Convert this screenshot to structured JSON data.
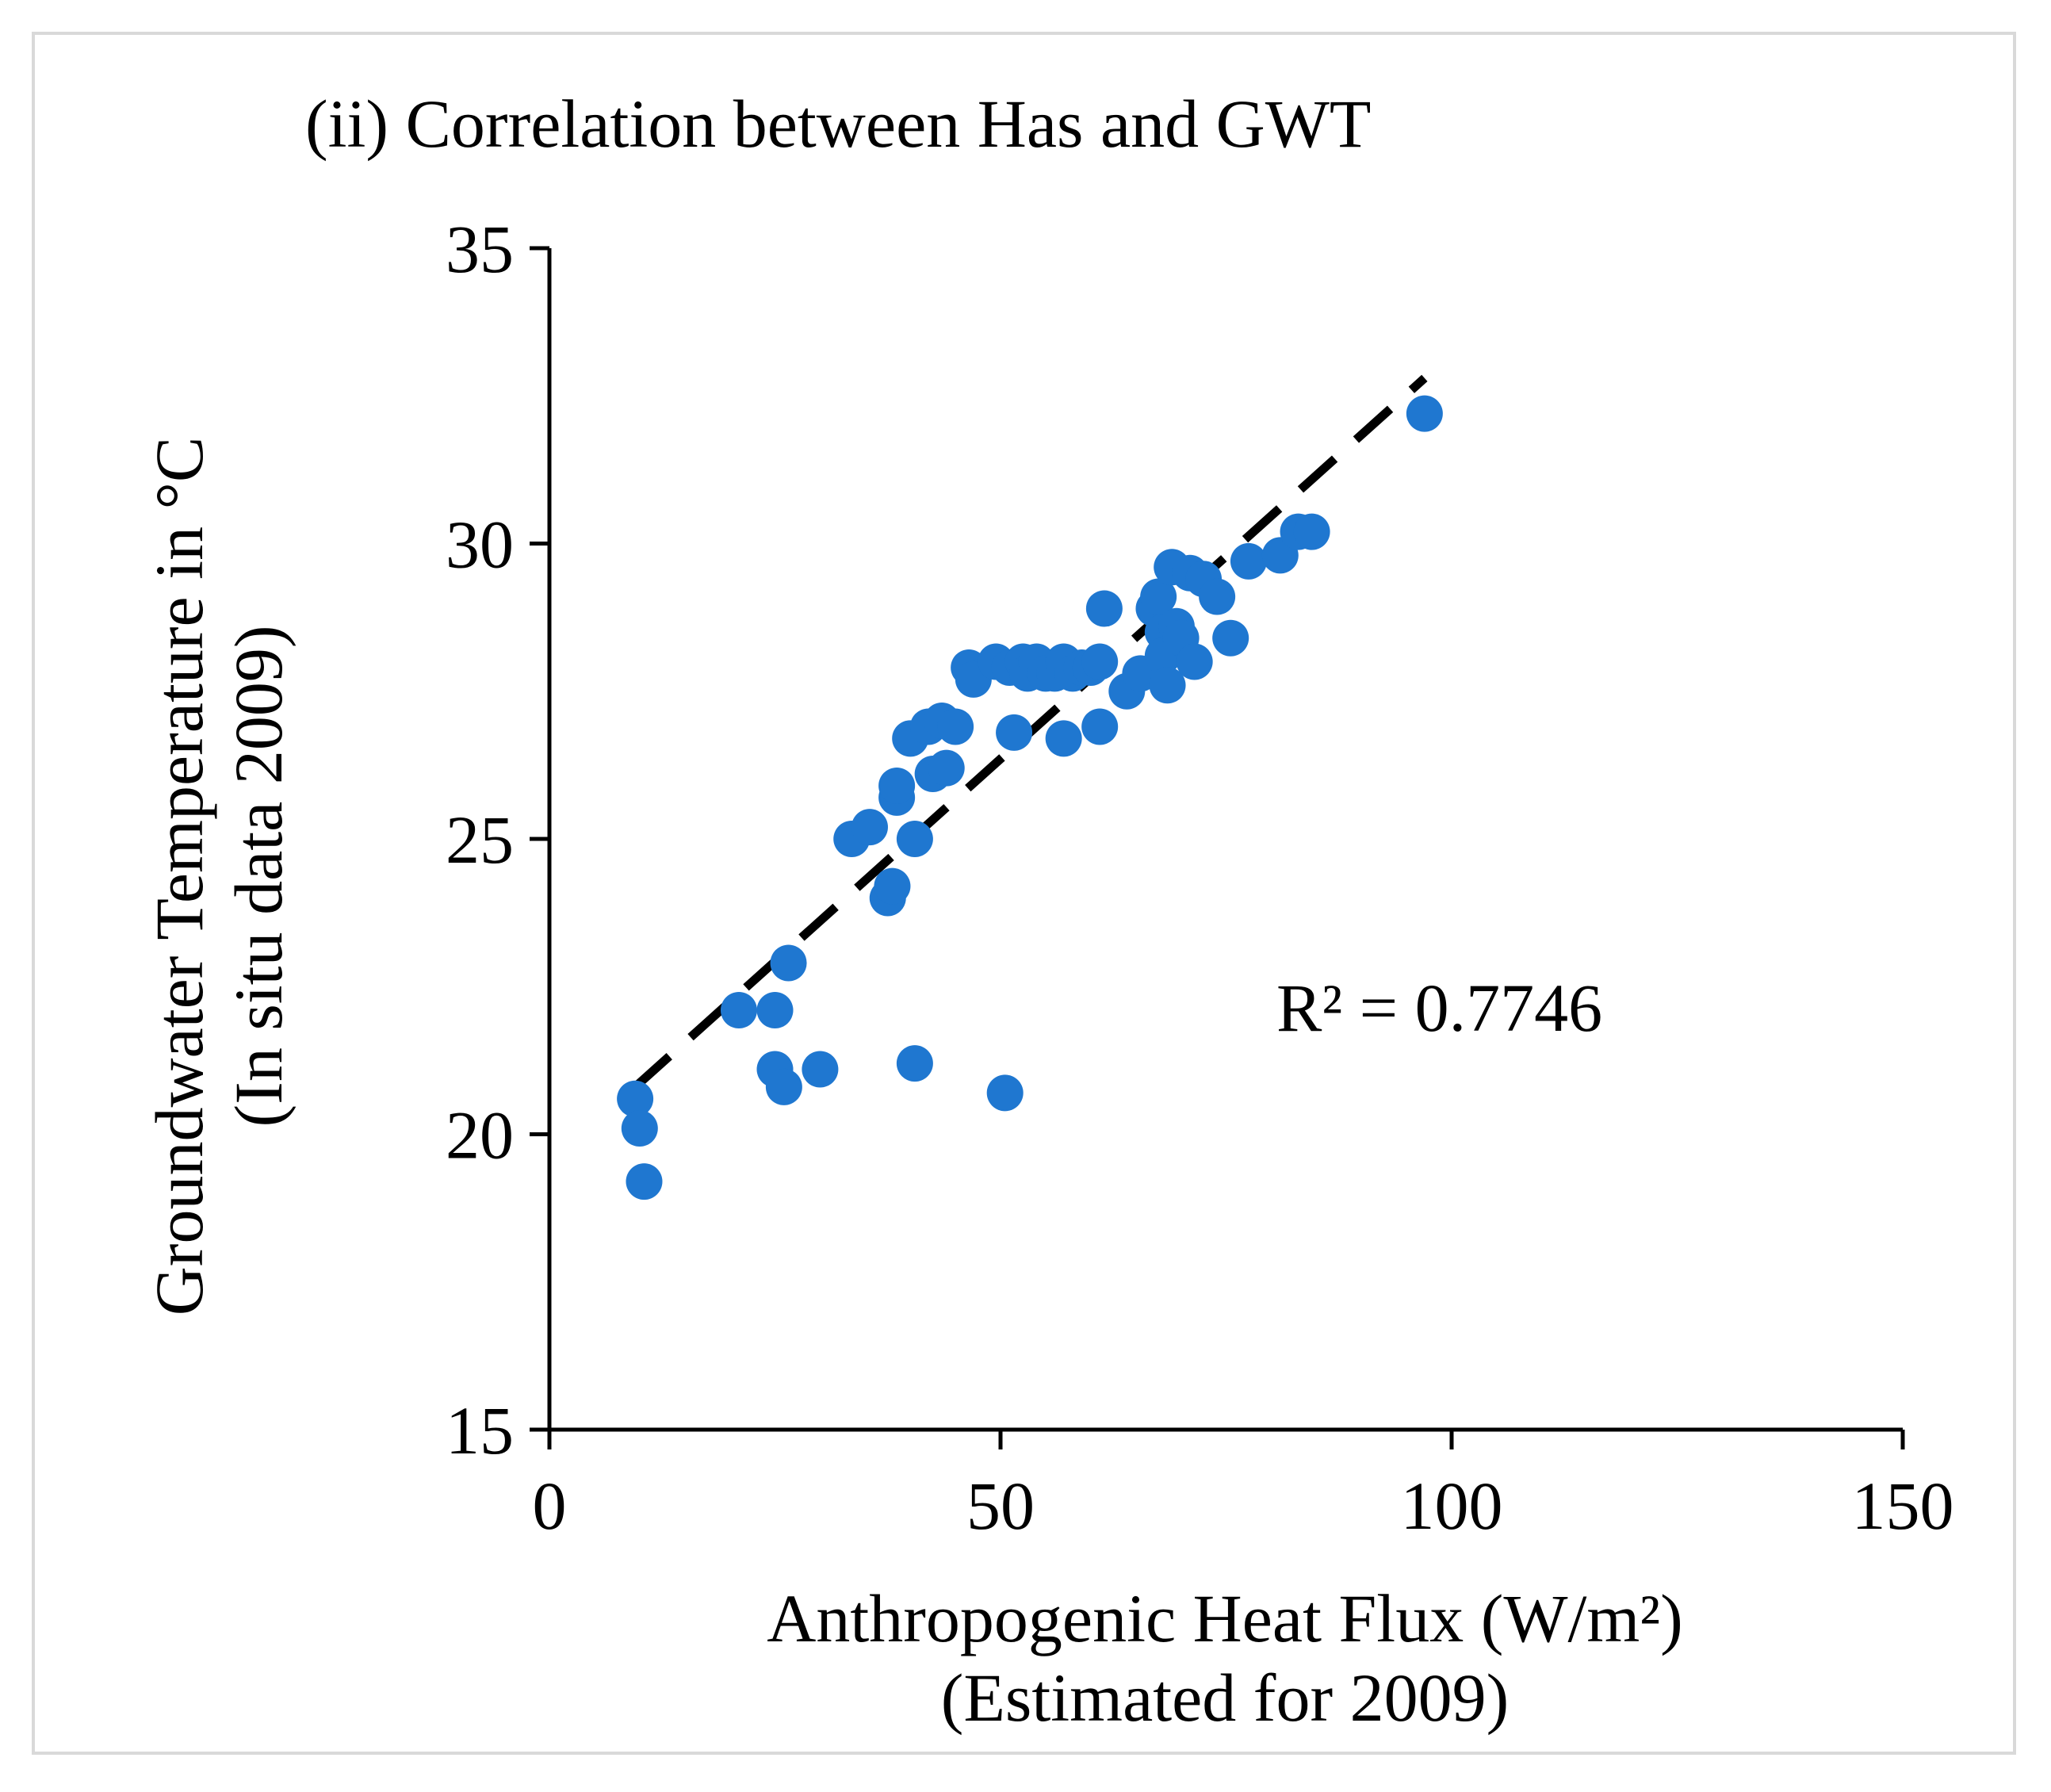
{
  "chart_data": {
    "type": "scatter",
    "title": "(ii) Correlation between Has and GWT",
    "xlabel": [
      "Anthropogenic Heat Flux (W/m²)",
      "(Estimated for 2009)"
    ],
    "ylabel": [
      "Groundwater Temperature in °C",
      "(In situ data 2009)"
    ],
    "xlim": [
      0,
      150
    ],
    "ylim": [
      15,
      35
    ],
    "xticks": [
      0,
      50,
      100,
      150
    ],
    "yticks": [
      15,
      20,
      25,
      30,
      35
    ],
    "x_tick_labels": [
      "0",
      "50",
      "100",
      "150"
    ],
    "y_tick_labels": [
      "15",
      "20",
      "25",
      "30",
      "35"
    ],
    "grid": false,
    "marker_color": "#1f77d0",
    "trendline": {
      "style": "dashed",
      "color": "#000000",
      "x": [
        9.5,
        97
      ],
      "y": [
        20.8,
        32.8
      ]
    },
    "annotation": "R² = 0.7746",
    "points": [
      {
        "x": 9.5,
        "y": 20.6
      },
      {
        "x": 10,
        "y": 20.1
      },
      {
        "x": 10.5,
        "y": 19.2
      },
      {
        "x": 21,
        "y": 22.1
      },
      {
        "x": 25,
        "y": 22.1
      },
      {
        "x": 25,
        "y": 21.1
      },
      {
        "x": 26,
        "y": 20.8
      },
      {
        "x": 26.5,
        "y": 22.9
      },
      {
        "x": 30,
        "y": 21.1
      },
      {
        "x": 33.5,
        "y": 25.0
      },
      {
        "x": 35.5,
        "y": 25.2
      },
      {
        "x": 37.5,
        "y": 24.0
      },
      {
        "x": 38,
        "y": 24.2
      },
      {
        "x": 38.5,
        "y": 25.7
      },
      {
        "x": 38.5,
        "y": 25.9
      },
      {
        "x": 40,
        "y": 26.7
      },
      {
        "x": 40.5,
        "y": 25.0
      },
      {
        "x": 40.5,
        "y": 21.2
      },
      {
        "x": 42,
        "y": 26.9
      },
      {
        "x": 42.5,
        "y": 26.1
      },
      {
        "x": 43.5,
        "y": 27.0
      },
      {
        "x": 44,
        "y": 26.2
      },
      {
        "x": 45,
        "y": 26.9
      },
      {
        "x": 46.5,
        "y": 27.9
      },
      {
        "x": 47,
        "y": 27.7
      },
      {
        "x": 49.5,
        "y": 28.0
      },
      {
        "x": 51,
        "y": 27.9
      },
      {
        "x": 51.5,
        "y": 26.8
      },
      {
        "x": 52.5,
        "y": 28.0
      },
      {
        "x": 53,
        "y": 27.8
      },
      {
        "x": 54,
        "y": 28.0
      },
      {
        "x": 55,
        "y": 27.8
      },
      {
        "x": 56,
        "y": 27.8
      },
      {
        "x": 57,
        "y": 28.0
      },
      {
        "x": 57,
        "y": 26.7
      },
      {
        "x": 58,
        "y": 27.8
      },
      {
        "x": 59,
        "y": 27.9
      },
      {
        "x": 60,
        "y": 27.9
      },
      {
        "x": 61,
        "y": 28.0
      },
      {
        "x": 61,
        "y": 26.9
      },
      {
        "x": 61.5,
        "y": 28.9
      },
      {
        "x": 50.5,
        "y": 20.7
      },
      {
        "x": 64,
        "y": 27.5
      },
      {
        "x": 65.5,
        "y": 27.8
      },
      {
        "x": 67,
        "y": 28.9
      },
      {
        "x": 67.5,
        "y": 29.1
      },
      {
        "x": 68,
        "y": 28.5
      },
      {
        "x": 68,
        "y": 28.1
      },
      {
        "x": 68.5,
        "y": 27.6
      },
      {
        "x": 69,
        "y": 29.6
      },
      {
        "x": 69.5,
        "y": 28.6
      },
      {
        "x": 70,
        "y": 28.4
      },
      {
        "x": 71,
        "y": 29.5
      },
      {
        "x": 71.5,
        "y": 28.0
      },
      {
        "x": 72.5,
        "y": 29.4
      },
      {
        "x": 74,
        "y": 29.1
      },
      {
        "x": 75.5,
        "y": 28.4
      },
      {
        "x": 77.5,
        "y": 29.7
      },
      {
        "x": 81,
        "y": 29.8
      },
      {
        "x": 83,
        "y": 30.2
      },
      {
        "x": 84.5,
        "y": 30.2
      },
      {
        "x": 97,
        "y": 32.2
      }
    ]
  }
}
